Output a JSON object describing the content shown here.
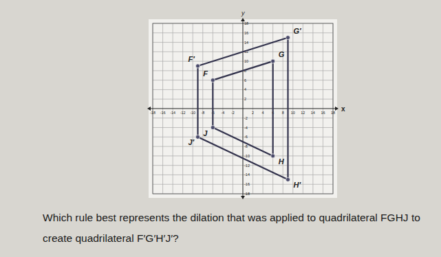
{
  "chart_data": {
    "type": "polygon",
    "x_label": "x",
    "y_label": "y",
    "caption": "Which rule best represents the dilation that was applied to quadrilateral FGHJ to create quadrilateral F′G′H′J′?",
    "xlim": [
      -18,
      18
    ],
    "ylim": [
      -18,
      18
    ],
    "xticks": [
      -18,
      -16,
      -14,
      -12,
      -10,
      -8,
      -6,
      -4,
      -2,
      2,
      4,
      6,
      8,
      10,
      12,
      14,
      16,
      18
    ],
    "yticks": [
      -18,
      -16,
      -14,
      -12,
      -10,
      -8,
      -6,
      -4,
      -2,
      2,
      4,
      6,
      8,
      10,
      12,
      14,
      16,
      18
    ],
    "grid": true,
    "shapes": [
      {
        "color": "#33334d",
        "vertices": [
          {
            "label": "F",
            "x": -6,
            "y": 6
          },
          {
            "label": "G",
            "x": 6,
            "y": 10
          },
          {
            "label": "H",
            "x": 6,
            "y": -10
          },
          {
            "label": "J",
            "x": -6,
            "y": -4
          }
        ]
      },
      {
        "color": "#33334d",
        "vertices": [
          {
            "label": "F′",
            "x": -9,
            "y": 9
          },
          {
            "label": "G′",
            "x": 9,
            "y": 15
          },
          {
            "label": "H′",
            "x": 9,
            "y": -15
          },
          {
            "label": "J′",
            "x": -9,
            "y": -6
          }
        ]
      }
    ]
  }
}
